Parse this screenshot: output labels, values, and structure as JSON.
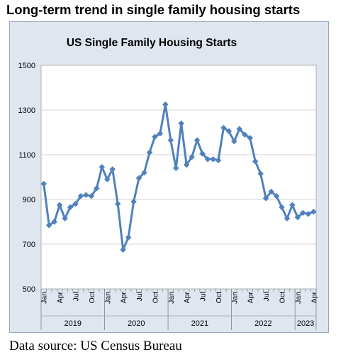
{
  "page": {
    "title": "Long-term trend in single family housing starts",
    "source": "Data source: US Census Bureau"
  },
  "colors": {
    "line": "#4f81bd",
    "plot_background": "#ffffff",
    "frame_background": "#dfe6f0",
    "gridline": "#c8c8c8"
  },
  "chart_data": {
    "type": "line",
    "title": "US Single Family Housing Starts",
    "xlabel": "",
    "ylabel": "",
    "ylim": [
      500,
      1500
    ],
    "yticks": [
      500,
      700,
      900,
      1100,
      1300,
      1500
    ],
    "grid": "horizontal",
    "legend": "none",
    "marker": "diamond",
    "month_tick_labels": [
      "Jan",
      "Apr",
      "Jul",
      "Oct",
      "Jan",
      "Apr",
      "Jul",
      "Oct",
      "Jan",
      "Apr",
      "Jul",
      "Oct",
      "Jan",
      "Apr",
      "Jul",
      "Oct",
      "Jan",
      "Apr"
    ],
    "year_groups": [
      {
        "label": "2019",
        "months": 12
      },
      {
        "label": "2020",
        "months": 12
      },
      {
        "label": "2021",
        "months": 12
      },
      {
        "label": "2022",
        "months": 12
      },
      {
        "label": "2023",
        "months": 4
      }
    ],
    "x": [
      "2019-01",
      "2019-02",
      "2019-03",
      "2019-04",
      "2019-05",
      "2019-06",
      "2019-07",
      "2019-08",
      "2019-09",
      "2019-10",
      "2019-11",
      "2019-12",
      "2020-01",
      "2020-02",
      "2020-03",
      "2020-04",
      "2020-05",
      "2020-06",
      "2020-07",
      "2020-08",
      "2020-09",
      "2020-10",
      "2020-11",
      "2020-12",
      "2021-01",
      "2021-02",
      "2021-03",
      "2021-04",
      "2021-05",
      "2021-06",
      "2021-07",
      "2021-08",
      "2021-09",
      "2021-10",
      "2021-11",
      "2021-12",
      "2022-01",
      "2022-02",
      "2022-03",
      "2022-04",
      "2022-05",
      "2022-06",
      "2022-07",
      "2022-08",
      "2022-09",
      "2022-10",
      "2022-11",
      "2022-12",
      "2023-01",
      "2023-02",
      "2023-03",
      "2023-04"
    ],
    "values": [
      970,
      785,
      800,
      875,
      815,
      865,
      880,
      915,
      920,
      915,
      950,
      1045,
      990,
      1035,
      880,
      675,
      730,
      890,
      995,
      1020,
      1110,
      1180,
      1195,
      1325,
      1165,
      1040,
      1240,
      1055,
      1090,
      1165,
      1105,
      1080,
      1080,
      1075,
      1220,
      1205,
      1160,
      1215,
      1190,
      1175,
      1070,
      1015,
      905,
      935,
      915,
      865,
      815,
      875,
      820,
      840,
      835,
      845
    ]
  }
}
